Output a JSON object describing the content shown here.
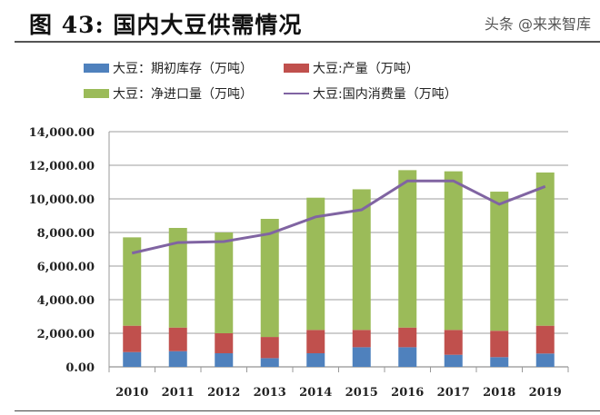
{
  "title": "图 43: 国内大豆供需情况",
  "watermark": "头条 @来来智库",
  "chart_data": {
    "type": "bar",
    "stacked": true,
    "categories": [
      "2010",
      "2011",
      "2012",
      "2013",
      "2014",
      "2015",
      "2016",
      "2017",
      "2018",
      "2019"
    ],
    "ylim": [
      0,
      14000
    ],
    "yticks": [
      "0.00",
      "2,000.00",
      "4,000.00",
      "6,000.00",
      "8,000.00",
      "10,000.00",
      "12,000.00",
      "14,000.00"
    ],
    "grid": true,
    "legend_placement": "top",
    "series": [
      {
        "name": "大豆：期初库存（万吨）",
        "kind": "bar",
        "color": "#4f81bd",
        "values": [
          880,
          935,
          810,
          520,
          810,
          1170,
          1170,
          720,
          580,
          795
        ]
      },
      {
        "name": "大豆:产量（万吨）",
        "kind": "bar",
        "color": "#c0504d",
        "values": [
          1570,
          1405,
          1190,
          1260,
          1390,
          1030,
          1170,
          1480,
          1570,
          1655
        ]
      },
      {
        "name": "大豆：净进口量（万吨）",
        "kind": "bar",
        "color": "#9bbb59",
        "values": [
          5260,
          5930,
          6000,
          7030,
          7870,
          8370,
          9370,
          9440,
          8280,
          9120
        ]
      },
      {
        "name": "大豆:国内消费量（万吨）",
        "kind": "line",
        "color": "#8064a2",
        "values": [
          6770,
          7400,
          7460,
          7930,
          8930,
          9350,
          11070,
          11070,
          9680,
          10740
        ]
      }
    ]
  }
}
